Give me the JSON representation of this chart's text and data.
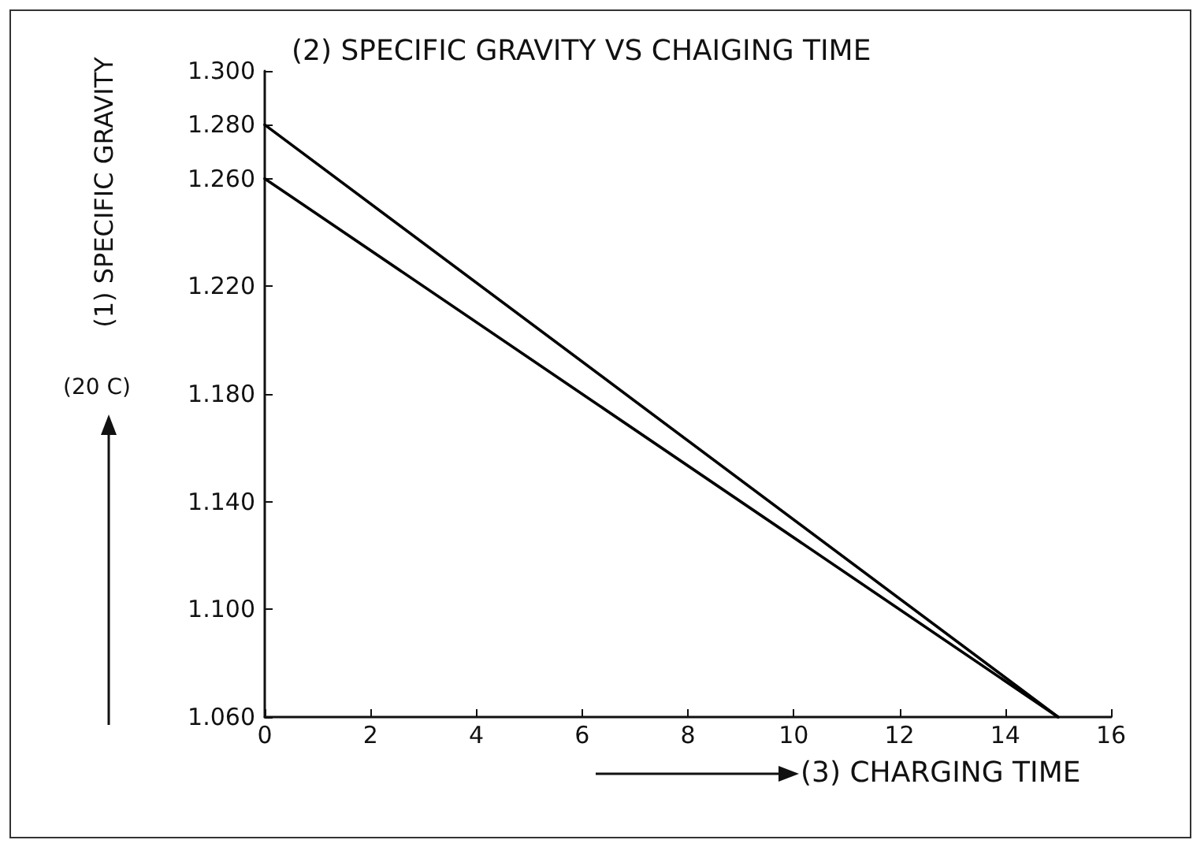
{
  "chart_data": {
    "type": "line",
    "title": "(2) SPECIFIC GRAVITY VS CHAIGING TIME",
    "xlabel": "(3) CHARGING TIME",
    "ylabel": "(1) SPECIFIC GRAVITY",
    "annotations": [
      "(20 C)"
    ],
    "x": [
      0,
      15
    ],
    "series": [
      {
        "color": "#000000",
        "values": [
          1.28,
          1.06
        ]
      },
      {
        "color": "#000000",
        "values": [
          1.26,
          1.06
        ]
      }
    ],
    "xlim": [
      0,
      16
    ],
    "xticks": [
      0,
      2,
      4,
      6,
      8,
      10,
      12,
      14,
      16
    ],
    "ylim": [
      1.06,
      1.3
    ],
    "yticks": [
      {
        "value": 1.06,
        "label": "1.060"
      },
      {
        "value": 1.1,
        "label": "1.100"
      },
      {
        "value": 1.14,
        "label": "1.140"
      },
      {
        "value": 1.18,
        "label": "1.180"
      },
      {
        "value": 1.22,
        "label": "1.220"
      },
      {
        "value": 1.26,
        "label": "1.260"
      },
      {
        "value": 1.28,
        "label": "1.280"
      },
      {
        "value": 1.3,
        "label": "1.300"
      }
    ],
    "grid": false,
    "marker": "none",
    "line_style": "solid"
  }
}
